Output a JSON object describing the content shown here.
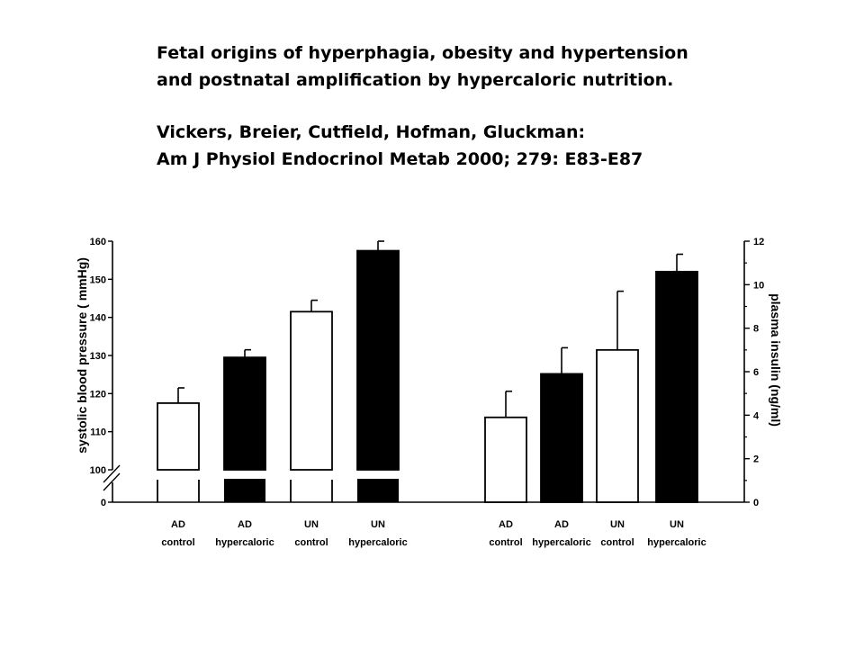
{
  "header": {
    "title_line1": "Fetal origins of hyperphagia, obesity and hypertension",
    "title_line2": "and postnatal amplification by hypercaloric nutrition.",
    "authors": "Vickers, Breier, Cutfield, Hofman, Gluckman:",
    "citation": "Am J Physiol Endocrinol Metab 2000; 279: E83-E87"
  },
  "chart_data": [
    {
      "type": "bar",
      "panel": "left",
      "ylabel": "systolic blood pressure ( mmHg)",
      "ylim": [
        100,
        160
      ],
      "axis_break": true,
      "break_baseline": 0,
      "yticks": [
        0,
        100,
        110,
        120,
        130,
        140,
        150,
        160
      ],
      "categories": [
        {
          "line1": "AD",
          "line2": "control"
        },
        {
          "line1": "AD",
          "line2": "hypercaloric"
        },
        {
          "line1": "UN",
          "line2": "control"
        },
        {
          "line1": "UN",
          "line2": "hypercaloric"
        }
      ],
      "values": [
        117.5,
        129.5,
        141.5,
        157.5
      ],
      "errors": [
        4,
        2,
        3,
        2.5
      ],
      "fills": [
        "#ffffff",
        "#000000",
        "#ffffff",
        "#000000"
      ]
    },
    {
      "type": "bar",
      "panel": "right",
      "ylabel": "plasma insulin (ng/ml)",
      "ylim": [
        0,
        12
      ],
      "yticks": [
        0,
        2,
        4,
        6,
        8,
        10,
        12
      ],
      "categories": [
        {
          "line1": "AD",
          "line2": "control"
        },
        {
          "line1": "AD",
          "line2": "hypercaloric"
        },
        {
          "line1": "UN",
          "line2": "control"
        },
        {
          "line1": "UN",
          "line2": "hypercaloric"
        }
      ],
      "values": [
        3.9,
        5.9,
        7.0,
        10.6
      ],
      "errors": [
        1.2,
        1.2,
        2.7,
        0.8
      ],
      "fills": [
        "#ffffff",
        "#000000",
        "#ffffff",
        "#000000"
      ]
    }
  ]
}
